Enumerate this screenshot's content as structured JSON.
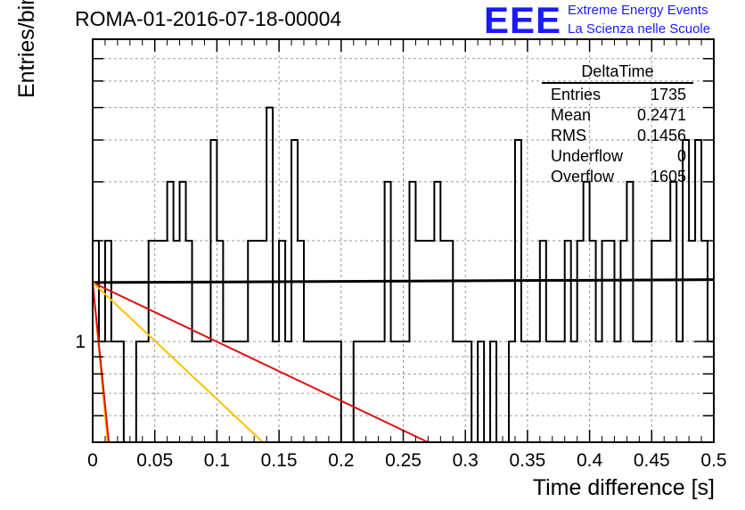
{
  "header": {
    "title": "ROMA-01-2016-07-18-00004"
  },
  "branding": {
    "logo_text": "EEE",
    "line1": "Extreme Energy Events",
    "line2": "La Scienza nelle Scuole",
    "color": "#1a1aff"
  },
  "stats_box": {
    "title": "DeltaTime",
    "rows": [
      {
        "label": "Entries",
        "value": "1735"
      },
      {
        "label": "Mean",
        "value": "0.2471"
      },
      {
        "label": "RMS",
        "value": "0.1456"
      },
      {
        "label": "Underflow",
        "value": "0"
      },
      {
        "label": "Overflow",
        "value": "1605"
      }
    ]
  },
  "chart_data": {
    "type": "histogram",
    "title": "ROMA-01-2016-07-18-00004",
    "xlabel": "Time difference [s]",
    "ylabel": "Entries/bin",
    "xlim": [
      0,
      0.5
    ],
    "ylim": [
      0.5,
      8
    ],
    "log_y": true,
    "grid": true,
    "x_ticks": [
      "0",
      "0.05",
      "0.1",
      "0.15",
      "0.2",
      "0.25",
      "0.3",
      "0.35",
      "0.4",
      "0.45",
      "0.5"
    ],
    "y_tick_labels": [
      {
        "value": 1,
        "label": "1"
      }
    ],
    "bin_width": 0.00667,
    "bin_values": [
      2,
      1,
      2,
      1,
      1,
      0,
      0,
      1,
      1,
      2,
      2,
      2,
      3,
      2,
      3,
      2,
      1,
      1,
      1,
      4,
      2,
      1,
      1,
      1,
      1,
      2,
      2,
      2,
      5,
      1,
      2,
      1,
      4,
      2,
      1,
      1,
      1,
      1,
      1,
      1,
      0,
      0,
      1,
      1,
      1,
      1,
      1,
      3,
      1,
      1,
      1,
      3,
      2,
      2,
      2,
      3,
      2,
      2,
      1,
      1,
      1,
      0,
      1,
      0,
      1,
      0,
      0,
      1,
      4,
      1,
      1,
      1,
      2,
      1,
      1,
      1,
      2,
      1,
      2,
      3,
      2,
      1,
      2,
      2,
      1,
      2,
      3,
      1,
      1,
      1,
      2,
      2,
      2,
      3,
      1,
      4,
      2,
      4,
      2,
      1
    ],
    "color_histogram": "#000000",
    "fit_lines": [
      {
        "color": "#000000",
        "x": [
          0.0,
          0.5
        ],
        "y": [
          1.5,
          1.53
        ]
      },
      {
        "color": "#e01010",
        "x": [
          0.0,
          0.27
        ],
        "y": [
          1.5,
          0.5
        ]
      },
      {
        "color": "#ffc000",
        "x": [
          0.0,
          0.137
        ],
        "y": [
          1.5,
          0.5
        ]
      },
      {
        "color": "#ffc000",
        "x": [
          0.0,
          0.012
        ],
        "y": [
          1.5,
          0.5
        ]
      },
      {
        "color": "#e01010",
        "x": [
          0.0,
          0.013
        ],
        "y": [
          1.5,
          0.5
        ]
      }
    ]
  }
}
